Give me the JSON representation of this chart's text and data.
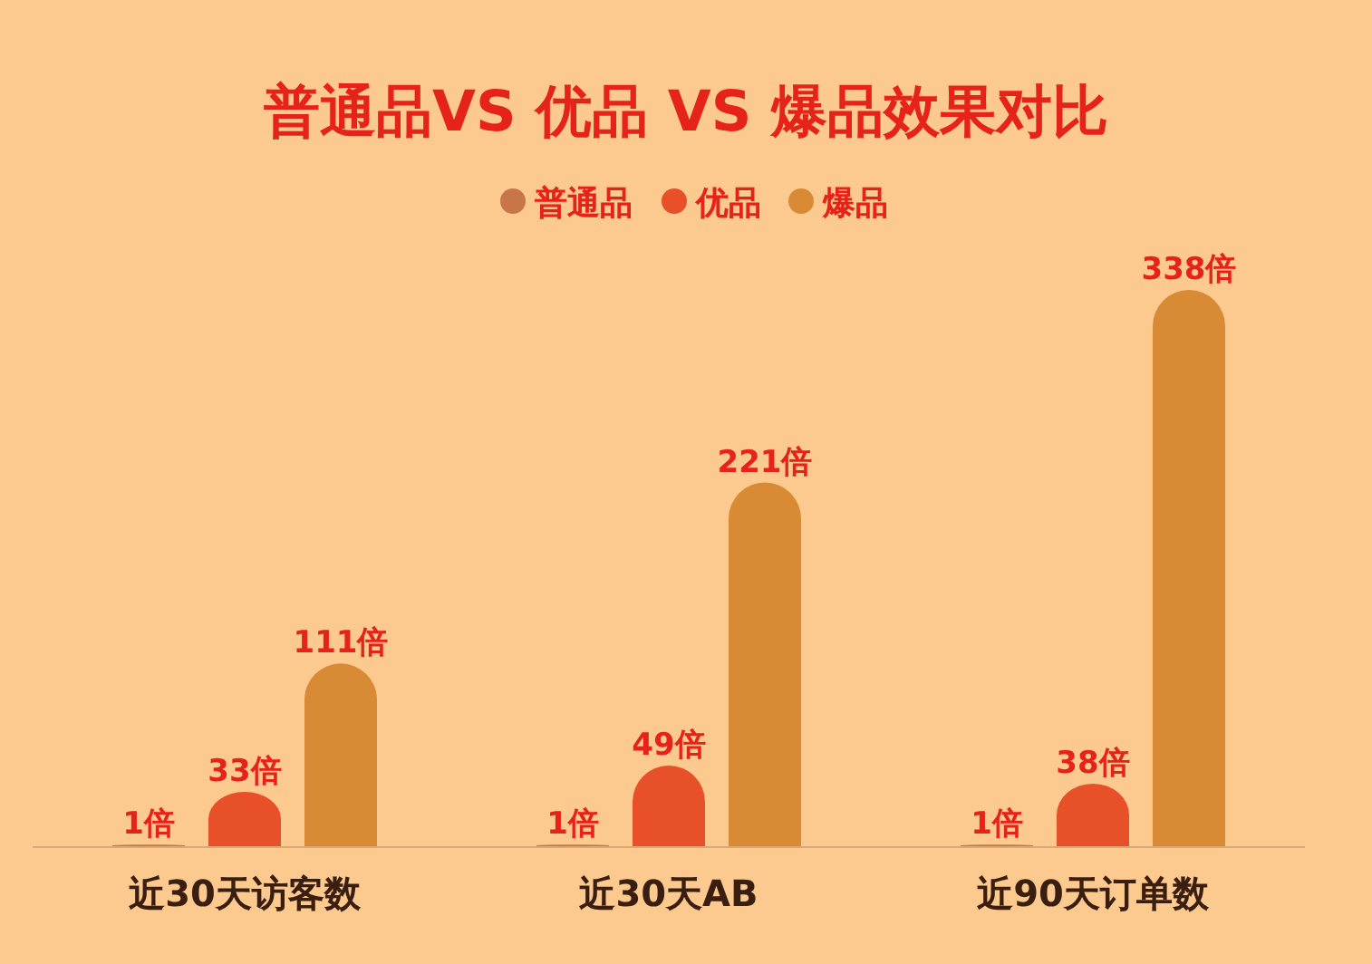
{
  "chart_data": {
    "type": "bar",
    "title": "普通品VS 优品 VS 爆品效果对比",
    "legend": "top",
    "categories": [
      "近30天访客数",
      "近30天AB",
      "近90天订单数"
    ],
    "series": [
      {
        "name": "普通品",
        "color": "#c8754a",
        "values": [
          1,
          1,
          1
        ],
        "value_labels": [
          "1倍",
          "1倍",
          "1倍"
        ]
      },
      {
        "name": "优品",
        "color": "#e8502a",
        "values": [
          33,
          49,
          38
        ],
        "value_labels": [
          "33倍",
          "49倍",
          "38倍"
        ]
      },
      {
        "name": "爆品",
        "color": "#d98a35",
        "values": [
          111,
          221,
          338
        ],
        "value_labels": [
          "111倍",
          "221倍",
          "338倍"
        ]
      }
    ]
  }
}
